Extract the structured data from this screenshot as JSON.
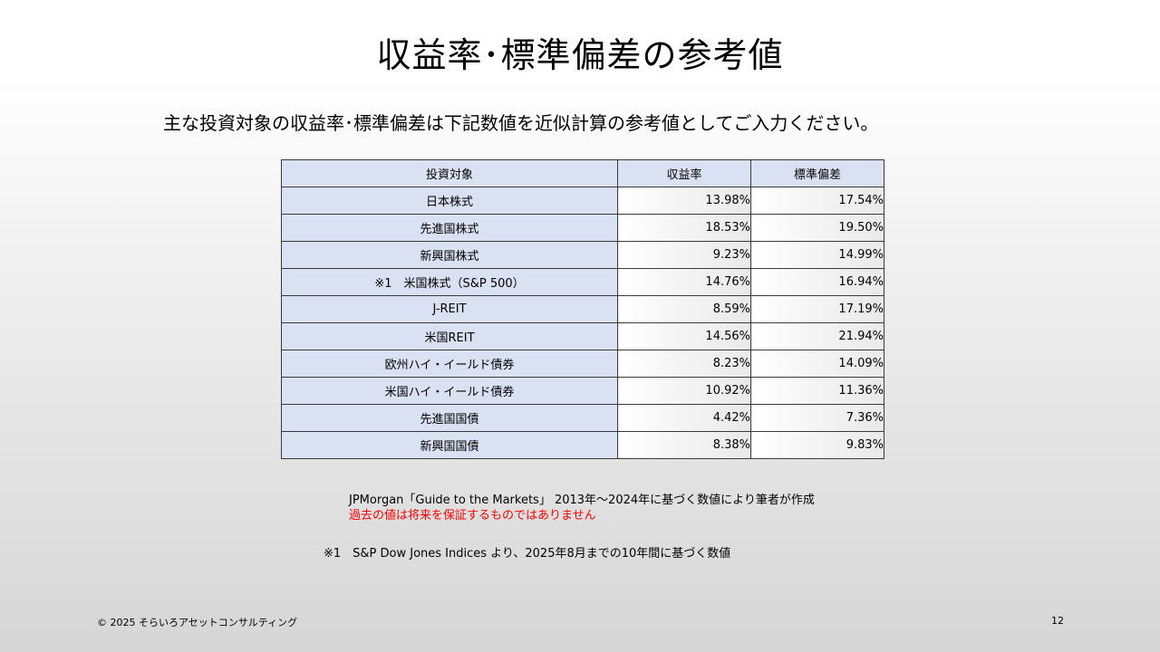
{
  "slide": {
    "title": "収益率･標準偏差の参考値",
    "subtitle": "主な投資対象の収益率･標準偏差は下記数値を近似計算の参考値としてご入力ください。"
  },
  "table": {
    "headers": [
      "投資対象",
      "収益率",
      "標準偏差"
    ],
    "rows": [
      {
        "name": "日本株式",
        "return": "13.98%",
        "stdev": "17.54%"
      },
      {
        "name": "先進国株式",
        "return": "18.53%",
        "stdev": "19.50%"
      },
      {
        "name": "新興国株式",
        "return": "9.23%",
        "stdev": "14.99%"
      },
      {
        "name": "※1　米国株式（S&P 500）",
        "return": "14.76%",
        "stdev": "16.94%"
      },
      {
        "name": "J-REIT",
        "return": "8.59%",
        "stdev": "17.19%"
      },
      {
        "name": "米国REIT",
        "return": "14.56%",
        "stdev": "21.94%"
      },
      {
        "name": "欧州ハイ・イールド債券",
        "return": "8.23%",
        "stdev": "14.09%"
      },
      {
        "name": "米国ハイ・イールド債券",
        "return": "10.92%",
        "stdev": "11.36%"
      },
      {
        "name": "先進国国債",
        "return": "4.42%",
        "stdev": "7.36%"
      },
      {
        "name": "新興国国債",
        "return": "8.38%",
        "stdev": "9.83%"
      }
    ]
  },
  "notes": {
    "source": "JPMorgan「Guide to the Markets」 2013年～2024年に基づく数値により筆者が作成",
    "warning": "過去の値は将来を保証するものではありません",
    "footnote1": "※1　S&P Dow Jones Indices より、2025年8月までの10年間に基づく数値"
  },
  "footer": {
    "copyright": "© 2025 そらいろアセットコンサルティング",
    "page_number": "12"
  },
  "colors": {
    "header_fill": "#d9e1f2",
    "warning_text": "#ff0000"
  }
}
